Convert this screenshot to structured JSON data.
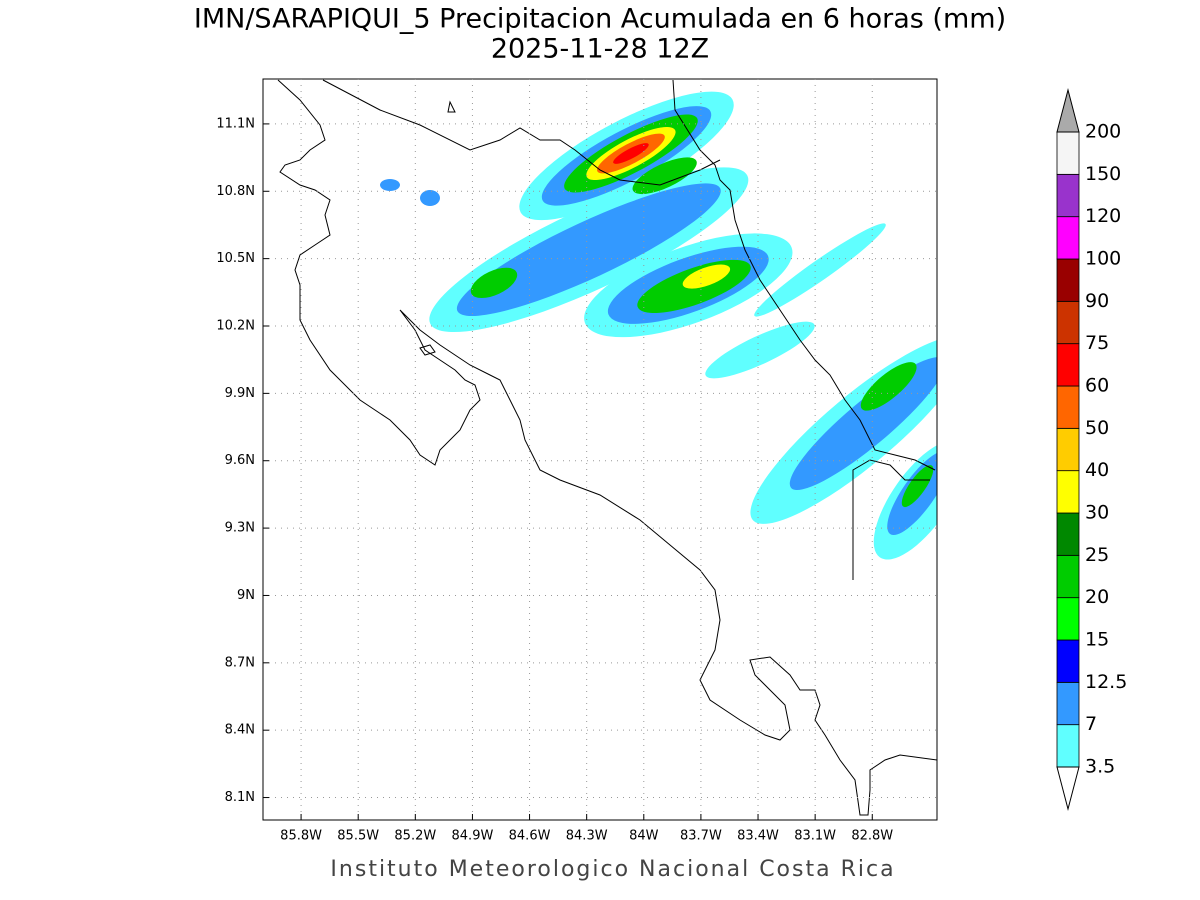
{
  "title": "IMN/SARAPIQUI_5 Precipitacion Acumulada en 6 horas (mm)",
  "subtitle": "2025-11-28 12Z",
  "footer": "Instituto Meteorologico Nacional Costa Rica",
  "map": {
    "xlim": [
      -86.0,
      -82.46
    ],
    "ylim": [
      8.0,
      11.3
    ],
    "grid": true,
    "xticks": [
      {
        "value": -85.8,
        "label": "85.8W"
      },
      {
        "value": -85.5,
        "label": "85.5W"
      },
      {
        "value": -85.2,
        "label": "85.2W"
      },
      {
        "value": -84.9,
        "label": "84.9W"
      },
      {
        "value": -84.6,
        "label": "84.6W"
      },
      {
        "value": -84.3,
        "label": "84.3W"
      },
      {
        "value": -84.0,
        "label": "84W"
      },
      {
        "value": -83.7,
        "label": "83.7W"
      },
      {
        "value": -83.4,
        "label": "83.4W"
      },
      {
        "value": -83.1,
        "label": "83.1W"
      },
      {
        "value": -82.8,
        "label": "82.8W"
      }
    ],
    "yticks": [
      {
        "value": 8.1,
        "label": "8.1N"
      },
      {
        "value": 8.4,
        "label": "8.4N"
      },
      {
        "value": 8.7,
        "label": "8.7N"
      },
      {
        "value": 9.0,
        "label": "9N"
      },
      {
        "value": 9.3,
        "label": "9.3N"
      },
      {
        "value": 9.6,
        "label": "9.6N"
      },
      {
        "value": 9.9,
        "label": "9.9N"
      },
      {
        "value": 10.2,
        "label": "10.2N"
      },
      {
        "value": 10.5,
        "label": "10.5N"
      },
      {
        "value": 10.8,
        "label": "10.8N"
      },
      {
        "value": 11.1,
        "label": "11.1N"
      }
    ]
  },
  "colorbar": {
    "levels": [
      3.5,
      7,
      12.5,
      15,
      20,
      25,
      30,
      40,
      50,
      60,
      75,
      90,
      100,
      120,
      150,
      200
    ],
    "colors": [
      "#60ffff",
      "#3399ff",
      "#0000ff",
      "#00ff00",
      "#00cc00",
      "#008800",
      "#ffff00",
      "#ffcc00",
      "#ff6600",
      "#ff0000",
      "#cc3300",
      "#990000",
      "#ff00ff",
      "#9933cc",
      "#f5f5f5"
    ],
    "under_color": "#ffffff",
    "over_color": "#aaaaaa"
  }
}
